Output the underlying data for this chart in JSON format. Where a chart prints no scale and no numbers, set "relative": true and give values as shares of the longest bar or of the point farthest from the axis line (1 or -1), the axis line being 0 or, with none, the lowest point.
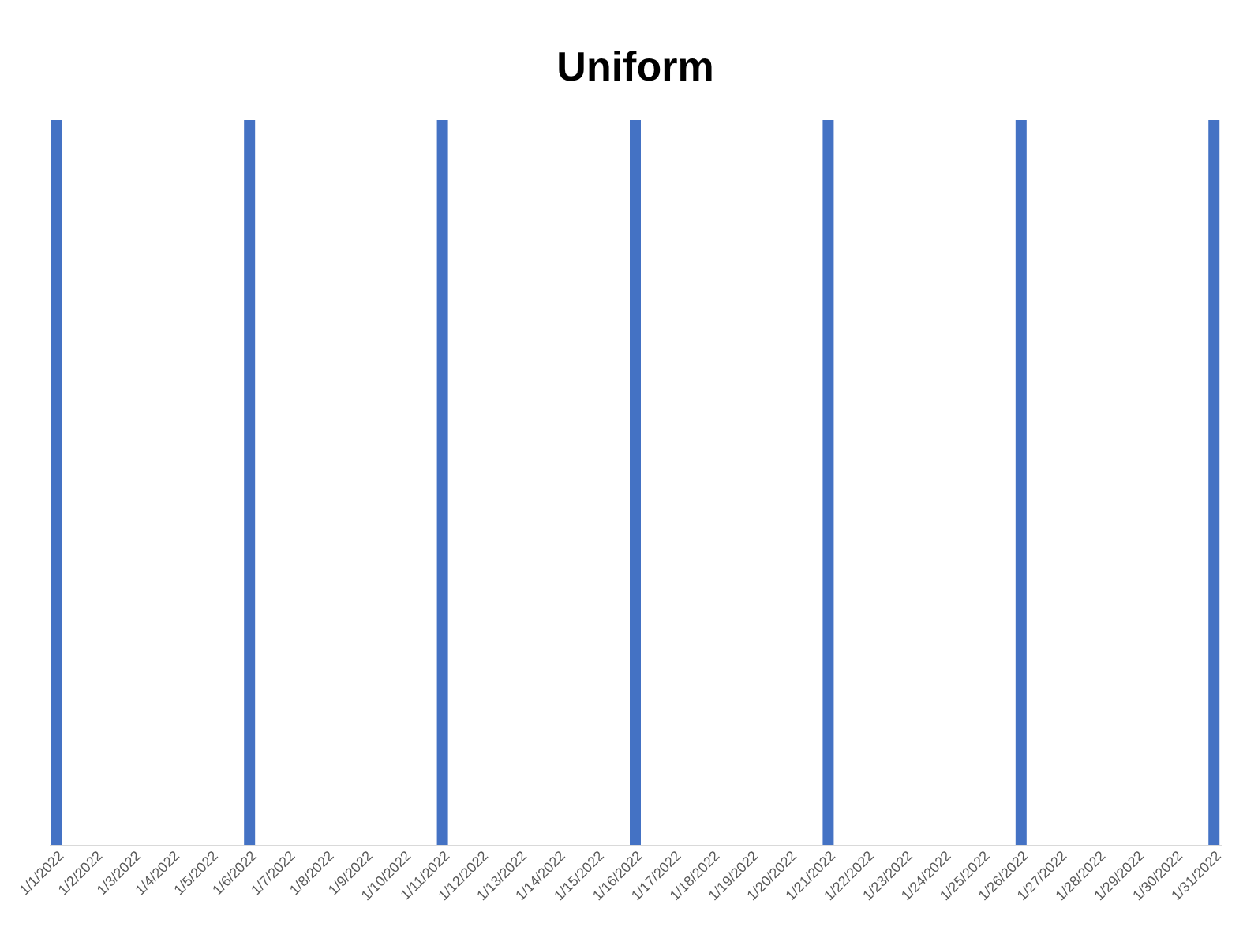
{
  "chart_data": {
    "type": "bar",
    "title": "Uniform",
    "relative": true,
    "color": "#4472c4",
    "categories": [
      "1/1/2022",
      "1/2/2022",
      "1/3/2022",
      "1/4/2022",
      "1/5/2022",
      "1/6/2022",
      "1/7/2022",
      "1/8/2022",
      "1/9/2022",
      "1/10/2022",
      "1/11/2022",
      "1/12/2022",
      "1/13/2022",
      "1/14/2022",
      "1/15/2022",
      "1/16/2022",
      "1/17/2022",
      "1/18/2022",
      "1/19/2022",
      "1/20/2022",
      "1/21/2022",
      "1/22/2022",
      "1/23/2022",
      "1/24/2022",
      "1/25/2022",
      "1/26/2022",
      "1/27/2022",
      "1/28/2022",
      "1/29/2022",
      "1/30/2022",
      "1/31/2022"
    ],
    "values": [
      1,
      null,
      null,
      null,
      null,
      1,
      null,
      null,
      null,
      null,
      1,
      null,
      null,
      null,
      null,
      1,
      null,
      null,
      null,
      null,
      1,
      null,
      null,
      null,
      null,
      1,
      null,
      null,
      null,
      null,
      1
    ]
  }
}
